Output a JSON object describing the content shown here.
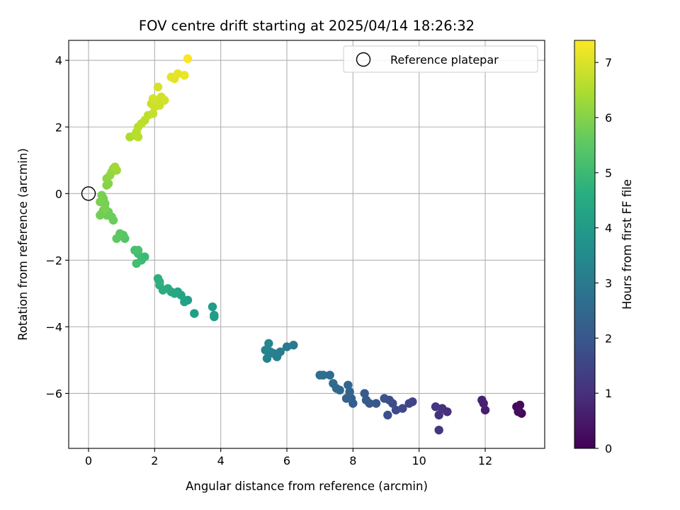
{
  "chart_data": {
    "type": "scatter",
    "title": "FOV centre drift starting at 2025/04/14 18:26:32",
    "xlabel": "Angular distance from reference (arcmin)",
    "ylabel": "Rotation from reference (arcmin)",
    "xlim": [
      -0.6,
      13.8
    ],
    "ylim": [
      -7.65,
      4.6
    ],
    "xticks": [
      0,
      2,
      4,
      6,
      8,
      10,
      12
    ],
    "yticks": [
      -6,
      -4,
      -2,
      0,
      2,
      4
    ],
    "grid": true,
    "legend_position": "top-right",
    "legend": {
      "label": "Reference platepar"
    },
    "reference_point": {
      "x": 0,
      "y": 0
    },
    "colorbar": {
      "label": "Hours from first FF file",
      "range": [
        0,
        7.4
      ],
      "ticks": [
        0,
        1,
        2,
        3,
        4,
        5,
        6,
        7
      ],
      "colormap": "viridis"
    },
    "points": [
      {
        "x": 13.0,
        "y": -6.45,
        "t": 0.05
      },
      {
        "x": 13.1,
        "y": -6.6,
        "t": 0.1
      },
      {
        "x": 12.95,
        "y": -6.4,
        "t": 0.15
      },
      {
        "x": 13.05,
        "y": -6.35,
        "t": 0.2
      },
      {
        "x": 13.0,
        "y": -6.55,
        "t": 0.25
      },
      {
        "x": 12.0,
        "y": -6.5,
        "t": 0.6
      },
      {
        "x": 11.95,
        "y": -6.3,
        "t": 0.65
      },
      {
        "x": 11.9,
        "y": -6.2,
        "t": 0.7
      },
      {
        "x": 10.85,
        "y": -6.55,
        "t": 1.0
      },
      {
        "x": 10.7,
        "y": -6.45,
        "t": 1.05
      },
      {
        "x": 10.6,
        "y": -6.65,
        "t": 1.1
      },
      {
        "x": 10.5,
        "y": -6.4,
        "t": 1.15
      },
      {
        "x": 10.6,
        "y": -7.1,
        "t": 1.2
      },
      {
        "x": 9.8,
        "y": -6.25,
        "t": 1.5
      },
      {
        "x": 9.7,
        "y": -6.3,
        "t": 1.55
      },
      {
        "x": 9.5,
        "y": -6.45,
        "t": 1.6
      },
      {
        "x": 9.3,
        "y": -6.5,
        "t": 1.65
      },
      {
        "x": 9.2,
        "y": -6.3,
        "t": 1.7
      },
      {
        "x": 9.1,
        "y": -6.2,
        "t": 1.75
      },
      {
        "x": 9.05,
        "y": -6.65,
        "t": 1.8
      },
      {
        "x": 8.95,
        "y": -6.15,
        "t": 1.85
      },
      {
        "x": 8.7,
        "y": -6.3,
        "t": 2.0
      },
      {
        "x": 8.5,
        "y": -6.3,
        "t": 2.05
      },
      {
        "x": 8.4,
        "y": -6.2,
        "t": 2.1
      },
      {
        "x": 8.35,
        "y": -6.0,
        "t": 2.15
      },
      {
        "x": 8.0,
        "y": -6.3,
        "t": 2.2
      },
      {
        "x": 7.95,
        "y": -6.15,
        "t": 2.25
      },
      {
        "x": 7.8,
        "y": -6.15,
        "t": 2.3
      },
      {
        "x": 7.9,
        "y": -5.95,
        "t": 2.35
      },
      {
        "x": 7.85,
        "y": -5.75,
        "t": 2.4
      },
      {
        "x": 7.6,
        "y": -5.9,
        "t": 2.45
      },
      {
        "x": 7.5,
        "y": -5.85,
        "t": 2.5
      },
      {
        "x": 7.4,
        "y": -5.7,
        "t": 2.55
      },
      {
        "x": 7.3,
        "y": -5.45,
        "t": 2.6
      },
      {
        "x": 7.1,
        "y": -5.45,
        "t": 2.65
      },
      {
        "x": 7.0,
        "y": -5.45,
        "t": 2.7
      },
      {
        "x": 6.2,
        "y": -4.55,
        "t": 3.0
      },
      {
        "x": 6.0,
        "y": -4.6,
        "t": 3.05
      },
      {
        "x": 5.8,
        "y": -4.75,
        "t": 3.1
      },
      {
        "x": 5.7,
        "y": -4.9,
        "t": 3.15
      },
      {
        "x": 5.6,
        "y": -4.8,
        "t": 3.2
      },
      {
        "x": 5.5,
        "y": -4.75,
        "t": 3.25
      },
      {
        "x": 5.4,
        "y": -4.95,
        "t": 3.3
      },
      {
        "x": 5.35,
        "y": -4.7,
        "t": 3.35
      },
      {
        "x": 5.45,
        "y": -4.5,
        "t": 3.4
      },
      {
        "x": 3.8,
        "y": -3.7,
        "t": 4.0
      },
      {
        "x": 3.75,
        "y": -3.4,
        "t": 4.05
      },
      {
        "x": 3.8,
        "y": -3.65,
        "t": 4.1
      },
      {
        "x": 3.2,
        "y": -3.6,
        "t": 4.15
      },
      {
        "x": 3.0,
        "y": -3.2,
        "t": 4.2
      },
      {
        "x": 2.9,
        "y": -3.25,
        "t": 4.25
      },
      {
        "x": 2.8,
        "y": -3.05,
        "t": 4.3
      },
      {
        "x": 2.7,
        "y": -2.95,
        "t": 4.35
      },
      {
        "x": 2.6,
        "y": -3.0,
        "t": 4.4
      },
      {
        "x": 2.5,
        "y": -2.95,
        "t": 4.45
      },
      {
        "x": 2.4,
        "y": -2.85,
        "t": 4.5
      },
      {
        "x": 2.25,
        "y": -2.9,
        "t": 4.55
      },
      {
        "x": 2.15,
        "y": -2.75,
        "t": 4.6
      },
      {
        "x": 2.1,
        "y": -2.55,
        "t": 4.65
      },
      {
        "x": 2.15,
        "y": -2.65,
        "t": 4.7
      },
      {
        "x": 1.7,
        "y": -1.9,
        "t": 5.0
      },
      {
        "x": 1.6,
        "y": -2.0,
        "t": 5.05
      },
      {
        "x": 1.5,
        "y": -1.8,
        "t": 5.1
      },
      {
        "x": 1.45,
        "y": -2.1,
        "t": 5.15
      },
      {
        "x": 1.4,
        "y": -1.7,
        "t": 5.2
      },
      {
        "x": 1.5,
        "y": -1.7,
        "t": 5.25
      },
      {
        "x": 1.1,
        "y": -1.35,
        "t": 5.4
      },
      {
        "x": 1.05,
        "y": -1.25,
        "t": 5.45
      },
      {
        "x": 0.95,
        "y": -1.2,
        "t": 5.5
      },
      {
        "x": 0.85,
        "y": -1.35,
        "t": 5.55
      },
      {
        "x": 0.75,
        "y": -0.8,
        "t": 5.7
      },
      {
        "x": 0.7,
        "y": -0.7,
        "t": 5.72
      },
      {
        "x": 0.6,
        "y": -0.55,
        "t": 5.74
      },
      {
        "x": 0.55,
        "y": -0.65,
        "t": 5.76
      },
      {
        "x": 0.45,
        "y": -0.5,
        "t": 5.78
      },
      {
        "x": 0.4,
        "y": -0.6,
        "t": 5.8
      },
      {
        "x": 0.35,
        "y": -0.65,
        "t": 5.82
      },
      {
        "x": 0.5,
        "y": -0.3,
        "t": 5.84
      },
      {
        "x": 0.45,
        "y": -0.15,
        "t": 5.86
      },
      {
        "x": 0.4,
        "y": -0.05,
        "t": 5.88
      },
      {
        "x": 0.35,
        "y": -0.25,
        "t": 5.9
      },
      {
        "x": 0.5,
        "y": -0.45,
        "t": 5.92
      },
      {
        "x": 0.55,
        "y": 0.25,
        "t": 6.0
      },
      {
        "x": 0.6,
        "y": 0.3,
        "t": 6.05
      },
      {
        "x": 0.55,
        "y": 0.45,
        "t": 6.1
      },
      {
        "x": 0.65,
        "y": 0.55,
        "t": 6.15
      },
      {
        "x": 0.7,
        "y": 0.65,
        "t": 6.2
      },
      {
        "x": 0.75,
        "y": 0.75,
        "t": 6.25
      },
      {
        "x": 0.85,
        "y": 0.7,
        "t": 6.3
      },
      {
        "x": 0.8,
        "y": 0.8,
        "t": 6.35
      },
      {
        "x": 1.25,
        "y": 1.7,
        "t": 6.5
      },
      {
        "x": 1.4,
        "y": 1.75,
        "t": 6.55
      },
      {
        "x": 1.5,
        "y": 1.7,
        "t": 6.6
      },
      {
        "x": 1.45,
        "y": 1.85,
        "t": 6.62
      },
      {
        "x": 1.5,
        "y": 2.0,
        "t": 6.64
      },
      {
        "x": 1.6,
        "y": 2.1,
        "t": 6.66
      },
      {
        "x": 1.7,
        "y": 2.2,
        "t": 6.68
      },
      {
        "x": 1.8,
        "y": 2.35,
        "t": 6.7
      },
      {
        "x": 1.95,
        "y": 2.4,
        "t": 6.72
      },
      {
        "x": 1.9,
        "y": 2.7,
        "t": 6.8
      },
      {
        "x": 2.0,
        "y": 2.6,
        "t": 6.82
      },
      {
        "x": 2.05,
        "y": 2.75,
        "t": 6.84
      },
      {
        "x": 2.15,
        "y": 2.65,
        "t": 6.86
      },
      {
        "x": 2.2,
        "y": 2.9,
        "t": 6.88
      },
      {
        "x": 2.3,
        "y": 2.8,
        "t": 6.9
      },
      {
        "x": 1.95,
        "y": 2.85,
        "t": 6.92
      },
      {
        "x": 2.1,
        "y": 3.2,
        "t": 6.95
      },
      {
        "x": 2.5,
        "y": 3.5,
        "t": 7.1
      },
      {
        "x": 2.6,
        "y": 3.45,
        "t": 7.12
      },
      {
        "x": 2.7,
        "y": 3.6,
        "t": 7.15
      },
      {
        "x": 2.9,
        "y": 3.55,
        "t": 7.18
      },
      {
        "x": 3.0,
        "y": 4.05,
        "t": 7.35
      }
    ]
  }
}
